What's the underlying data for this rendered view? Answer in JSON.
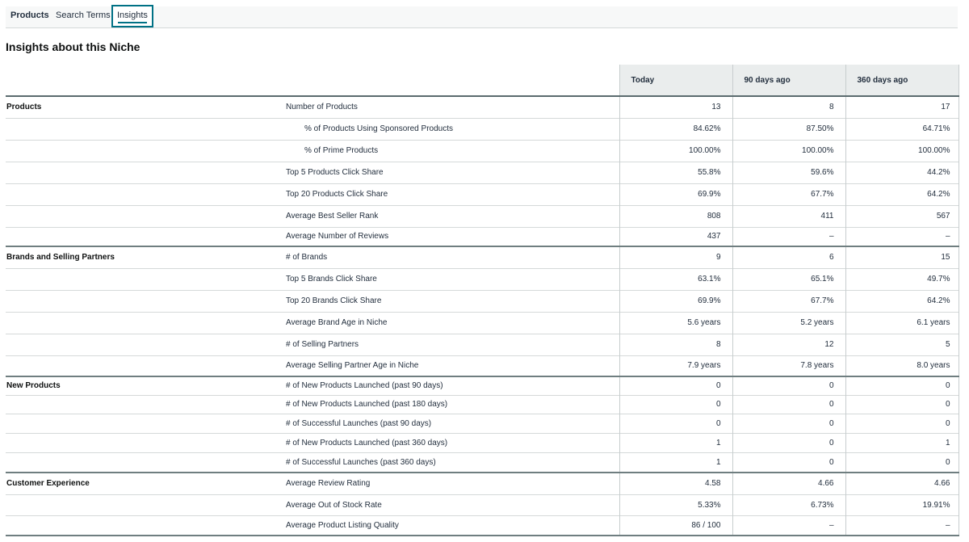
{
  "tabs": [
    {
      "label": "Products"
    },
    {
      "label": "Search Terms"
    },
    {
      "label": "Insights"
    }
  ],
  "section_title": "Insights about this Niche",
  "columns": [
    "Today",
    "90 days ago",
    "360 days ago"
  ],
  "groups": [
    {
      "name": "Products",
      "rows": [
        {
          "label": "Number of Products",
          "values": [
            "13",
            "8",
            "17"
          ]
        },
        {
          "label": "% of Products Using Sponsored Products",
          "values": [
            "84.62%",
            "87.50%",
            "64.71%"
          ]
        },
        {
          "label": "% of Prime Products",
          "values": [
            "100.00%",
            "100.00%",
            "100.00%"
          ]
        },
        {
          "label": "Top 5 Products Click Share",
          "values": [
            "55.8%",
            "59.6%",
            "44.2%"
          ]
        },
        {
          "label": "Top 20 Products Click Share",
          "values": [
            "69.9%",
            "67.7%",
            "64.2%"
          ]
        },
        {
          "label": "Average Best Seller Rank",
          "values": [
            "808",
            "411",
            "567"
          ]
        },
        {
          "label": "Average Number of Reviews",
          "values": [
            "437",
            "–",
            "–"
          ]
        }
      ]
    },
    {
      "name": "Brands and Selling Partners",
      "rows": [
        {
          "label": "# of Brands",
          "values": [
            "9",
            "6",
            "15"
          ]
        },
        {
          "label": "Top 5 Brands Click Share",
          "values": [
            "63.1%",
            "65.1%",
            "49.7%"
          ]
        },
        {
          "label": "Top 20 Brands Click Share",
          "values": [
            "69.9%",
            "67.7%",
            "64.2%"
          ]
        },
        {
          "label": "Average Brand Age in Niche",
          "values": [
            "5.6 years",
            "5.2 years",
            "6.1 years"
          ]
        },
        {
          "label": "# of Selling Partners",
          "values": [
            "8",
            "12",
            "5"
          ]
        },
        {
          "label": "Average Selling Partner Age in Niche",
          "values": [
            "7.9 years",
            "7.8 years",
            "8.0 years"
          ]
        }
      ]
    },
    {
      "name": "New Products",
      "rows": [
        {
          "label": "# of New Products Launched (past 90 days)",
          "values": [
            "0",
            "0",
            "0"
          ]
        },
        {
          "label": "# of New Products Launched (past 180 days)",
          "values": [
            "0",
            "0",
            "0"
          ]
        },
        {
          "label": "# of Successful Launches (past 90 days)",
          "values": [
            "0",
            "0",
            "0"
          ]
        },
        {
          "label": "# of New Products Launched (past 360 days)",
          "values": [
            "1",
            "0",
            "1"
          ]
        },
        {
          "label": "# of Successful Launches (past 360 days)",
          "values": [
            "1",
            "0",
            "0"
          ]
        }
      ]
    },
    {
      "name": "Customer Experience",
      "rows": [
        {
          "label": "Average Review Rating",
          "values": [
            "4.58",
            "4.66",
            "4.66"
          ]
        },
        {
          "label": "Average Out of Stock Rate",
          "values": [
            "5.33%",
            "6.73%",
            "19.91%"
          ]
        },
        {
          "label": "Average Product Listing Quality",
          "values": [
            "86 / 100",
            "–",
            "–"
          ]
        }
      ]
    }
  ]
}
